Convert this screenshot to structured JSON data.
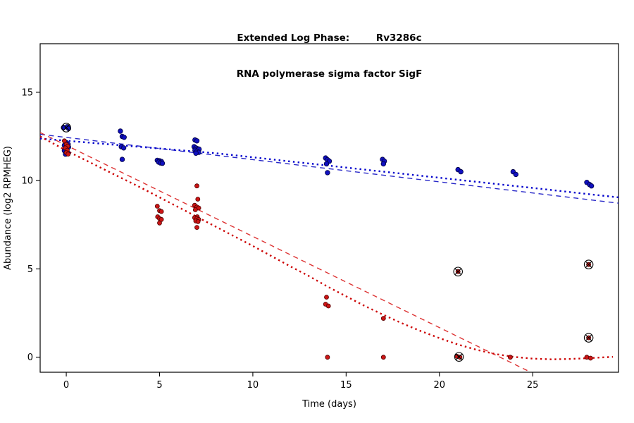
{
  "title": {
    "line1": "Extended Log Phase:        Rv3286c",
    "line2": "RNA polymerase sigma factor SigF"
  },
  "chart_data": {
    "type": "scatter",
    "title": "Extended Log Phase:        Rv3286c",
    "subtitle": "RNA polymerase sigma factor SigF",
    "xlabel": "Time  (days)",
    "ylabel": "Abundance  (log2 RPMHEG)",
    "xlim": [
      -1.4,
      29.6
    ],
    "ylim": [
      -0.85,
      17.75
    ],
    "xticks": [
      0,
      5,
      10,
      15,
      20,
      25
    ],
    "yticks": [
      0,
      5,
      10,
      15
    ],
    "grid": false,
    "legend": "none",
    "colors": {
      "blue": "#1010c0",
      "red": "#cc1515",
      "marker_outline": "#000000"
    },
    "series": [
      {
        "name": "blue-series",
        "color": "#1010c0",
        "outline": "#000040",
        "radius": 3.3,
        "points": [
          [
            -0.15,
            13.0
          ],
          [
            0.05,
            13.05
          ],
          [
            0.12,
            12.95
          ],
          [
            0,
            12.15
          ],
          [
            0.1,
            12.05
          ],
          [
            -0.1,
            12.0
          ],
          [
            0.02,
            11.95
          ],
          [
            0.12,
            11.9
          ],
          [
            0,
            11.8
          ],
          [
            -0.1,
            11.7
          ],
          [
            0.02,
            11.62
          ],
          [
            0.1,
            11.55
          ],
          [
            -0.04,
            11.5
          ],
          [
            2.9,
            12.8
          ],
          [
            3.0,
            12.5
          ],
          [
            3.1,
            12.45
          ],
          [
            2.95,
            11.92
          ],
          [
            3.08,
            11.85
          ],
          [
            3.0,
            11.2
          ],
          [
            4.88,
            11.15
          ],
          [
            5.0,
            11.12
          ],
          [
            5.1,
            11.08
          ],
          [
            4.95,
            11.05
          ],
          [
            5.05,
            11.0
          ],
          [
            5.15,
            10.98
          ],
          [
            6.9,
            12.3
          ],
          [
            7.0,
            12.25
          ],
          [
            6.85,
            11.92
          ],
          [
            6.95,
            11.85
          ],
          [
            7.05,
            11.8
          ],
          [
            7.12,
            11.78
          ],
          [
            6.9,
            11.72
          ],
          [
            7.0,
            11.65
          ],
          [
            7.1,
            11.6
          ],
          [
            6.95,
            11.55
          ],
          [
            13.9,
            11.28
          ],
          [
            14.0,
            11.18
          ],
          [
            14.1,
            11.1
          ],
          [
            13.95,
            10.95
          ],
          [
            14.0,
            10.45
          ],
          [
            16.95,
            11.2
          ],
          [
            17.05,
            11.1
          ],
          [
            17.0,
            10.95
          ],
          [
            21.0,
            10.62
          ],
          [
            21.15,
            10.5
          ],
          [
            23.95,
            10.5
          ],
          [
            24.1,
            10.35
          ],
          [
            27.9,
            9.9
          ],
          [
            28.05,
            9.78
          ],
          [
            28.15,
            9.7
          ]
        ]
      },
      {
        "name": "red-series",
        "color": "#cc1515",
        "outline": "#500000",
        "radius": 3.0,
        "points": [
          [
            -0.1,
            12.25
          ],
          [
            0.0,
            12.05
          ],
          [
            0.08,
            11.95
          ],
          [
            -0.05,
            11.85
          ],
          [
            0.05,
            11.72
          ],
          [
            0.0,
            11.58
          ],
          [
            0.1,
            11.5
          ],
          [
            4.88,
            8.55
          ],
          [
            5.0,
            8.3
          ],
          [
            5.1,
            8.25
          ],
          [
            4.9,
            7.95
          ],
          [
            5.0,
            7.85
          ],
          [
            5.1,
            7.8
          ],
          [
            5.0,
            7.6
          ],
          [
            7.0,
            9.7
          ],
          [
            7.05,
            8.95
          ],
          [
            6.88,
            8.6
          ],
          [
            7.0,
            8.5
          ],
          [
            7.1,
            8.45
          ],
          [
            6.92,
            8.35
          ],
          [
            7.02,
            7.95
          ],
          [
            6.88,
            7.9
          ],
          [
            7.0,
            7.85
          ],
          [
            7.1,
            7.8
          ],
          [
            6.94,
            7.72
          ],
          [
            7.06,
            7.68
          ],
          [
            7.0,
            7.35
          ],
          [
            13.95,
            3.4
          ],
          [
            13.9,
            3.0
          ],
          [
            14.05,
            2.9
          ],
          [
            14.0,
            0.0
          ],
          [
            17.0,
            2.2
          ],
          [
            17.0,
            0.0
          ],
          [
            21.0,
            4.85
          ],
          [
            20.95,
            0.05
          ],
          [
            21.1,
            0.0
          ],
          [
            23.8,
            0.0
          ],
          [
            28.0,
            5.25
          ],
          [
            28.0,
            1.1
          ],
          [
            27.9,
            0.0
          ],
          [
            28.1,
            -0.05
          ]
        ]
      }
    ],
    "flagged_points": {
      "marker": "circle-x",
      "color": "#000000",
      "points": [
        [
          0.0,
          13.0
        ],
        [
          21.0,
          4.85
        ],
        [
          21.05,
          0.02
        ],
        [
          28.0,
          5.25
        ],
        [
          28.0,
          1.1
        ]
      ]
    },
    "trend_lines": [
      {
        "name": "blue-dashed-fit",
        "color": "#2828c8",
        "dash": "7,5.5",
        "width": 1.4,
        "points": [
          [
            -1.4,
            12.62
          ],
          [
            29.6,
            8.72
          ]
        ]
      },
      {
        "name": "blue-dotted-fit",
        "color": "#0000cc",
        "dash": "2.4,4.4",
        "width": 2.4,
        "points": [
          [
            -1.4,
            12.38
          ],
          [
            8,
            11.55
          ],
          [
            16,
            10.62
          ],
          [
            24,
            9.7
          ],
          [
            29.6,
            9.05
          ]
        ]
      },
      {
        "name": "red-dashed-fit",
        "color": "#dd3333",
        "dash": "7,5.5",
        "width": 1.4,
        "points": [
          [
            -1.4,
            12.72
          ],
          [
            24.9,
            -0.85
          ]
        ]
      },
      {
        "name": "red-dotted-fit",
        "color": "#cc0000",
        "dash": "2.4,4.4",
        "width": 2.4,
        "points": [
          [
            -1.4,
            12.5
          ],
          [
            0,
            11.7
          ],
          [
            2,
            10.65
          ],
          [
            4,
            9.6
          ],
          [
            6,
            8.5
          ],
          [
            8,
            7.4
          ],
          [
            10,
            6.3
          ],
          [
            12,
            5.15
          ],
          [
            13,
            4.6
          ],
          [
            14,
            4.0
          ],
          [
            15,
            3.45
          ],
          [
            16,
            2.9
          ],
          [
            17,
            2.4
          ],
          [
            18,
            1.92
          ],
          [
            19,
            1.48
          ],
          [
            20,
            1.08
          ],
          [
            21,
            0.72
          ],
          [
            22,
            0.42
          ],
          [
            23,
            0.18
          ],
          [
            24,
            0.02
          ],
          [
            25,
            -0.08
          ],
          [
            26,
            -0.12
          ],
          [
            27,
            -0.1
          ],
          [
            28,
            -0.05
          ],
          [
            29.3,
            0.02
          ]
        ]
      }
    ]
  }
}
